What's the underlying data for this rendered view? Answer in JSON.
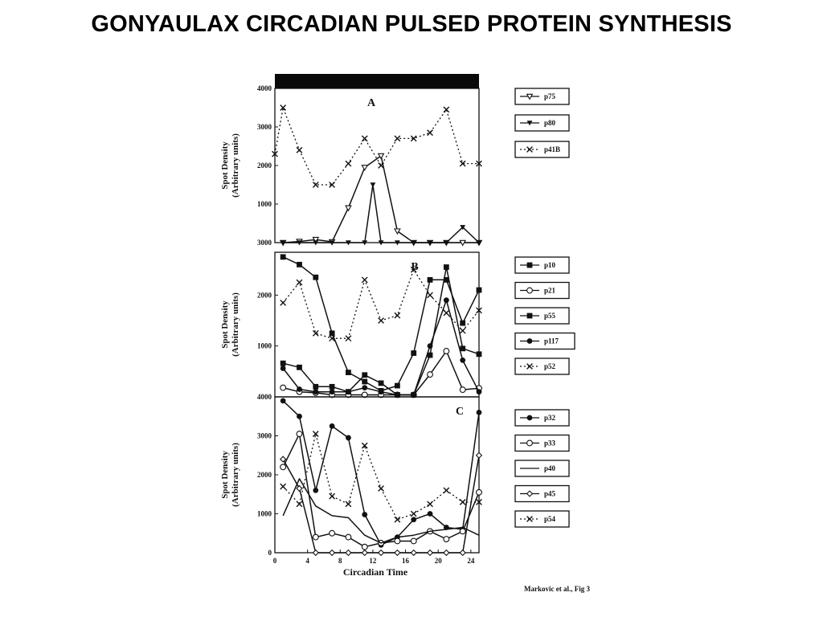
{
  "slide": {
    "title": "GONYAULAX CIRCADIAN PULSED PROTEIN SYNTHESIS",
    "credit": "Markovic et al., Fig 3"
  },
  "chart_data": [
    {
      "type": "line",
      "panel": "A",
      "ylabel": "Spot Density",
      "ylabel2": "(Arbitrary units)",
      "xlabel": "",
      "xlim": [
        0,
        25
      ],
      "ylim": [
        0,
        4000
      ],
      "yticks": [
        1000,
        2000,
        3000,
        4000
      ],
      "ytick_labels": [
        "1000",
        "2000",
        "3000",
        "4000"
      ],
      "bottom_label": "3000",
      "light_dark_bar": true,
      "series": [
        {
          "name": "p75",
          "style": "solid",
          "marker": "triangle-down",
          "x": [
            1,
            3,
            5,
            7,
            9,
            11,
            13,
            15,
            17,
            19,
            21,
            23,
            25
          ],
          "y": [
            0,
            30,
            80,
            20,
            900,
            1950,
            2250,
            300,
            0,
            0,
            0,
            0,
            0
          ]
        },
        {
          "name": "p80",
          "style": "solid",
          "marker": "triangle-down-filled",
          "x": [
            1,
            3,
            5,
            7,
            9,
            11,
            12,
            13,
            15,
            17,
            19,
            21,
            23,
            25
          ],
          "y": [
            0,
            0,
            0,
            0,
            0,
            0,
            1500,
            0,
            0,
            0,
            0,
            0,
            400,
            0
          ]
        },
        {
          "name": "p41B",
          "style": "dotted",
          "marker": "x",
          "x": [
            0,
            1,
            3,
            5,
            7,
            9,
            11,
            13,
            15,
            17,
            19,
            21,
            23,
            25
          ],
          "y": [
            2300,
            3500,
            2400,
            1500,
            1500,
            2050,
            2700,
            2000,
            2700,
            2700,
            2850,
            3450,
            2050,
            2050
          ]
        }
      ]
    },
    {
      "type": "line",
      "panel": "B",
      "ylabel": "Spot Density",
      "ylabel2": "(Arbitrary units)",
      "xlabel": "",
      "xlim": [
        0,
        25
      ],
      "ylim": [
        0,
        3000
      ],
      "yticks": [
        1000,
        2000
      ],
      "ytick_labels": [
        "1000",
        "2000"
      ],
      "bottom_label": "4000",
      "series": [
        {
          "name": "p10",
          "style": "solid",
          "marker": "square-filled",
          "x": [
            1,
            3,
            5,
            7,
            9,
            11,
            13,
            15,
            17,
            19,
            21,
            23,
            25
          ],
          "y": [
            2750,
            2600,
            2350,
            1250,
            480,
            300,
            120,
            220,
            860,
            2300,
            2300,
            1450,
            2100
          ]
        },
        {
          "name": "p21",
          "style": "solid",
          "marker": "circle-open",
          "x": [
            1,
            3,
            5,
            7,
            9,
            11,
            13,
            15,
            17,
            19,
            21,
            23,
            25
          ],
          "y": [
            180,
            100,
            80,
            40,
            40,
            40,
            40,
            40,
            40,
            440,
            900,
            140,
            170
          ]
        },
        {
          "name": "p55",
          "style": "solid",
          "marker": "square-filled",
          "x": [
            1,
            3,
            5,
            7,
            9,
            11,
            13,
            15,
            17,
            19,
            21,
            23,
            25
          ],
          "y": [
            660,
            580,
            200,
            200,
            100,
            430,
            270,
            40,
            40,
            820,
            2550,
            950,
            840
          ]
        },
        {
          "name": "p117",
          "style": "solid",
          "marker": "circle-filled",
          "x": [
            1,
            3,
            5,
            7,
            9,
            11,
            13,
            15,
            17,
            19,
            21,
            23,
            25
          ],
          "y": [
            560,
            150,
            100,
            100,
            100,
            180,
            100,
            40,
            40,
            1000,
            1900,
            720,
            100
          ]
        },
        {
          "name": "p52",
          "style": "dotted",
          "marker": "x",
          "x": [
            1,
            3,
            5,
            7,
            9,
            11,
            13,
            15,
            17,
            19,
            21,
            23,
            25
          ],
          "y": [
            1850,
            2250,
            1250,
            1150,
            1150,
            2300,
            1500,
            1600,
            2500,
            2000,
            1650,
            1300,
            1700
          ]
        }
      ]
    },
    {
      "type": "line",
      "panel": "C",
      "ylabel": "Spot Density",
      "ylabel2": "(Arbitrary units)",
      "xlabel": "Circadian Time",
      "xlim": [
        0,
        25
      ],
      "ylim": [
        0,
        4000
      ],
      "yticks": [
        0,
        1000,
        2000,
        3000
      ],
      "ytick_labels": [
        "0",
        "1000",
        "2000",
        "3000"
      ],
      "xticks": [
        0,
        4,
        8,
        12,
        16,
        20,
        24
      ],
      "xtick_labels": [
        "0",
        "4",
        "8",
        "12",
        "16",
        "20",
        "24"
      ],
      "series": [
        {
          "name": "p32",
          "style": "solid",
          "marker": "circle-filled",
          "x": [
            1,
            3,
            5,
            7,
            9,
            11,
            13,
            15,
            17,
            19,
            21,
            23,
            25
          ],
          "y": [
            3900,
            3500,
            1600,
            3250,
            2950,
            980,
            200,
            400,
            850,
            1000,
            650,
            600,
            3600
          ]
        },
        {
          "name": "p33",
          "style": "solid",
          "marker": "circle-open",
          "x": [
            1,
            3,
            5,
            7,
            9,
            11,
            13,
            15,
            17,
            19,
            21,
            23,
            25
          ],
          "y": [
            2200,
            3050,
            400,
            500,
            400,
            150,
            250,
            300,
            300,
            550,
            350,
            550,
            1550
          ]
        },
        {
          "name": "p40",
          "style": "solid",
          "marker": "none",
          "x": [
            1,
            3,
            5,
            7,
            9,
            11,
            13,
            15,
            17,
            19,
            21,
            23,
            25
          ],
          "y": [
            950,
            1900,
            1200,
            950,
            900,
            450,
            250,
            400,
            450,
            550,
            600,
            650,
            450
          ]
        },
        {
          "name": "p45",
          "style": "solid",
          "marker": "diamond-open",
          "x": [
            1,
            3,
            5,
            7,
            9,
            11,
            13,
            15,
            17,
            19,
            21,
            23,
            25
          ],
          "y": [
            2400,
            1650,
            0,
            0,
            0,
            0,
            0,
            0,
            0,
            0,
            0,
            0,
            2500
          ]
        },
        {
          "name": "p54",
          "style": "dotted",
          "marker": "x",
          "x": [
            1,
            3,
            5,
            7,
            9,
            11,
            13,
            15,
            17,
            19,
            21,
            23,
            25
          ],
          "y": [
            1700,
            1250,
            3050,
            1450,
            1250,
            2750,
            1650,
            850,
            1000,
            1250,
            1600,
            1300,
            1300
          ]
        }
      ]
    }
  ]
}
